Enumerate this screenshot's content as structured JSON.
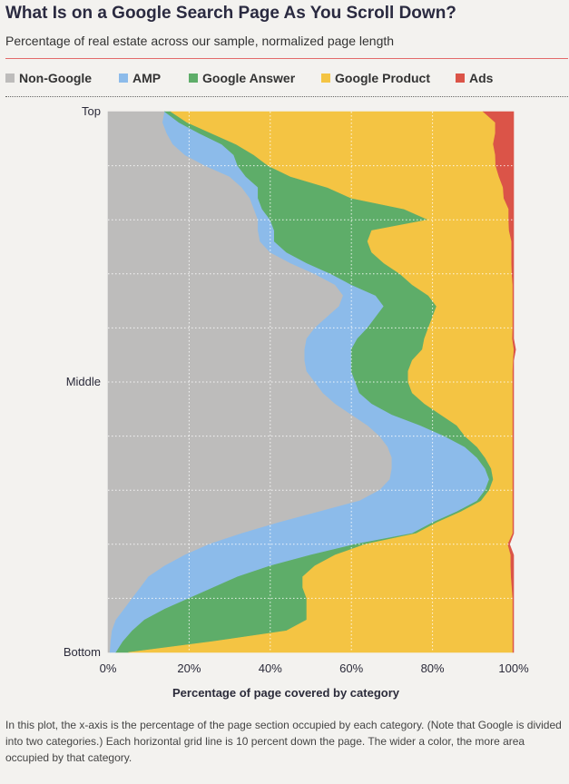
{
  "header": {
    "title": "What Is on a Google Search Page As You Scroll Down?",
    "subtitle": "Percentage of real estate across our sample, normalized page length"
  },
  "legend": [
    {
      "label": "Non-Google",
      "color": "#bdbcbb"
    },
    {
      "label": "AMP",
      "color": "#8cbbea"
    },
    {
      "label": "Google Answer",
      "color": "#5ead69"
    },
    {
      "label": "Google Product",
      "color": "#f4c443"
    },
    {
      "label": "Ads",
      "color": "#db5448"
    }
  ],
  "chart_data": {
    "type": "area",
    "orientation": "horizontal-stacked-100",
    "xlabel": "Percentage of page covered by category",
    "x_ticks": [
      "0%",
      "20%",
      "40%",
      "60%",
      "80%",
      "100%"
    ],
    "xlim": [
      0,
      100
    ],
    "y_ticks": [
      "Top",
      "Middle",
      "Bottom"
    ],
    "y_tick_positions": [
      0,
      50,
      100
    ],
    "ylabel": "",
    "grid": true,
    "legend_position": "top",
    "y": [
      0,
      2,
      4,
      6,
      8,
      10,
      12,
      14,
      16,
      18,
      20,
      22,
      24,
      26,
      28,
      30,
      32,
      34,
      36,
      38,
      40,
      42,
      44,
      46,
      48,
      50,
      52,
      54,
      56,
      58,
      60,
      62,
      64,
      66,
      68,
      70,
      72,
      74,
      76,
      78,
      80,
      82,
      84,
      86,
      88,
      90,
      92,
      94,
      96,
      98,
      100
    ],
    "series": [
      {
        "name": "Non-Google",
        "color": "#bdbcbb",
        "values": [
          14,
          13.5,
          14.5,
          16,
          19,
          24,
          30,
          33,
          35,
          36,
          37,
          37,
          37.5,
          40,
          45,
          51,
          56,
          58,
          57,
          54,
          51,
          49,
          48.5,
          48.5,
          49,
          51,
          53,
          56,
          60,
          64,
          67,
          69,
          70,
          70,
          69.5,
          67,
          62,
          52,
          42,
          33,
          25,
          19,
          14,
          10,
          8,
          6,
          4,
          2,
          1,
          0.7,
          0.5
        ]
      },
      {
        "name": "AMP",
        "color": "#8cbbea",
        "values": [
          0,
          4,
          8,
          12,
          12,
          8,
          4,
          4,
          2,
          2,
          3,
          4,
          3.5,
          4,
          4,
          4,
          4,
          8,
          11,
          12,
          13,
          12.5,
          11.5,
          11.5,
          11,
          10,
          9,
          9,
          10,
          13,
          16,
          19,
          21,
          23,
          24.5,
          26,
          29,
          34,
          38,
          42,
          36,
          31,
          26,
          22,
          18,
          14,
          10,
          7,
          5,
          3,
          1.5
        ]
      },
      {
        "name": "Google Answer",
        "color": "#5ead69",
        "values": [
          1.5,
          2,
          3,
          3.5,
          5,
          7.5,
          11,
          17,
          23,
          35,
          39,
          24,
          23,
          21,
          19,
          17,
          15,
          13,
          13,
          14,
          15,
          16.5,
          17.5,
          15,
          14,
          13,
          13,
          13,
          12,
          9,
          5,
          3,
          2,
          1.5,
          1,
          1,
          1,
          1,
          1,
          1,
          2.5,
          6,
          11,
          16,
          22,
          29,
          35,
          40,
          38,
          22,
          3
        ]
      },
      {
        "name": "Google Product",
        "color": "#f4c443",
        "values": [
          77,
          76,
          70,
          63.5,
          59.5,
          56.1,
          51.4,
          43.4,
          37.6,
          25.8,
          19.8,
          33.9,
          35.5,
          34.5,
          31.5,
          27.6,
          24.8,
          20.8,
          18.8,
          19.8,
          20.8,
          21.7,
          22.6,
          24.9,
          25.8,
          25.8,
          24.8,
          21.8,
          17.8,
          13.8,
          11.8,
          8.8,
          6.8,
          5.3,
          4.8,
          5.8,
          7.8,
          12.8,
          18.8,
          23.8,
          35.1,
          43.3,
          48.3,
          51.4,
          51.6,
          50.8,
          50.8,
          50.8,
          55.8,
          74.1,
          94.8
        ]
      },
      {
        "name": "Ads",
        "color": "#db5448",
        "values": [
          7.5,
          4.5,
          4.5,
          5,
          4.5,
          4.4,
          3.6,
          2.6,
          2.4,
          1.2,
          1.2,
          1.1,
          0.5,
          0.5,
          0.5,
          0.4,
          0.2,
          0.2,
          0.2,
          0.2,
          0.2,
          0.3,
          0.4,
          0.1,
          0.2,
          0.2,
          0.2,
          0.2,
          0.2,
          0.2,
          0.2,
          0.2,
          0.2,
          0.2,
          0.2,
          0.2,
          0.2,
          0.2,
          0.2,
          0.2,
          0.4,
          0.7,
          0.7,
          0.6,
          0.4,
          0.2,
          0.2,
          0.2,
          0.2,
          0.2,
          0.2
        ]
      }
    ]
  },
  "note": "In this plot, the x-axis is the percentage of the page section occupied by each category. (Note that Google is divided into two categories.) Each horizontal grid line is 10 percent down the page. The wider a color, the more area occupied by that category."
}
